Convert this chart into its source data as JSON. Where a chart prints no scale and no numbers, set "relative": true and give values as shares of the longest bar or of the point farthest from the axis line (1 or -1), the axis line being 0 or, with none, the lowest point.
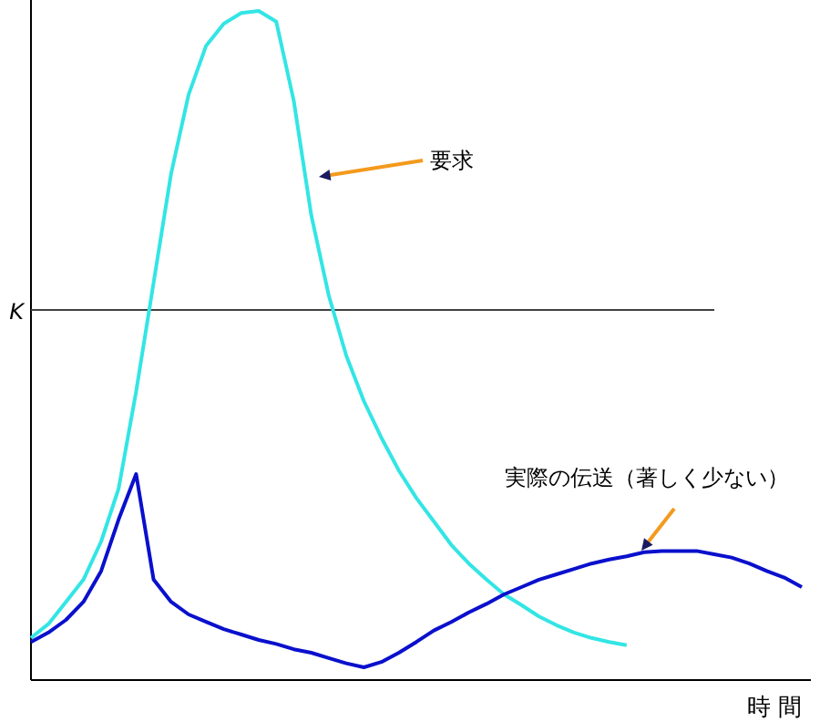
{
  "chart_data": {
    "type": "line",
    "relative": true,
    "xlabel": "時 間",
    "marker": "none",
    "line_style": "solid",
    "categories": [
      null,
      null,
      null,
      null,
      null,
      null,
      null,
      null,
      null,
      null,
      null,
      null,
      null,
      null,
      null,
      null,
      null,
      null,
      null,
      null,
      null,
      null,
      null,
      null,
      null,
      null,
      null,
      null,
      null,
      null,
      null,
      null,
      null,
      null,
      null,
      null,
      null,
      null,
      null,
      null,
      null,
      null,
      null,
      null,
      null
    ],
    "series": [
      {
        "color": "#33e5e5",
        "values": [
          0.063,
          0.084,
          0.117,
          0.15,
          0.207,
          0.286,
          0.431,
          0.594,
          0.757,
          0.875,
          0.948,
          0.981,
          0.997,
          1.0,
          0.984,
          0.866,
          0.695,
          0.575,
          0.485,
          0.417,
          0.362,
          0.313,
          0.272,
          0.237,
          0.202,
          0.174,
          0.15,
          0.128,
          0.112,
          0.095,
          0.082,
          0.071,
          0.063,
          0.057,
          0.052,
          null,
          null,
          null,
          null,
          null,
          null,
          null,
          null,
          null,
          null
        ]
      },
      {
        "color": "#0a10cc",
        "values": [
          0.057,
          0.071,
          0.09,
          0.117,
          0.163,
          0.24,
          0.308,
          0.15,
          0.117,
          0.098,
          0.087,
          0.076,
          0.068,
          0.06,
          0.054,
          0.046,
          0.041,
          0.033,
          0.025,
          0.019,
          0.027,
          0.041,
          0.057,
          0.074,
          0.087,
          0.101,
          0.114,
          0.128,
          0.139,
          0.15,
          0.158,
          0.166,
          0.174,
          0.18,
          0.185,
          0.191,
          0.193,
          0.193,
          0.193,
          0.188,
          0.183,
          0.174,
          0.163,
          0.153,
          0.139
        ]
      }
    ],
    "ref_lines": [
      {
        "axis": "y",
        "value": 0.553,
        "label": "K",
        "color": "#404040"
      }
    ],
    "annotations": [
      "要求",
      "実際の伝送（著しく少ない）"
    ]
  }
}
